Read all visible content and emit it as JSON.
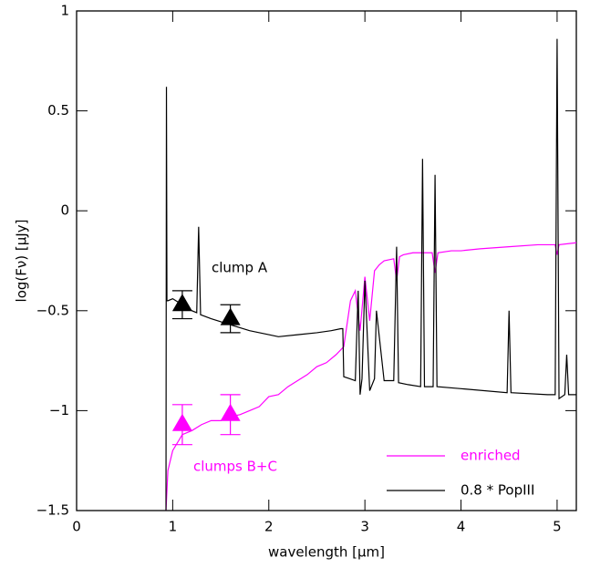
{
  "chart_data": {
    "type": "line",
    "x_label": "wavelength [μm]",
    "y_label": "log(Fν) [μJy]",
    "xlim": [
      0,
      5.2
    ],
    "ylim": [
      -1.5,
      1
    ],
    "xticks": [
      0,
      1,
      2,
      3,
      4,
      5
    ],
    "yticks": [
      {
        "value": -1.5,
        "label": "−1.5"
      },
      {
        "value": -1,
        "label": "−1"
      },
      {
        "value": -0.5,
        "label": "−0.5"
      },
      0,
      0.5,
      1
    ],
    "legend": "lower right",
    "series": [
      {
        "name": "enriched",
        "color": "#ff00ff",
        "x": [
          0.93,
          0.95,
          1.0,
          1.1,
          1.2,
          1.3,
          1.4,
          1.5,
          1.6,
          1.7,
          1.8,
          1.9,
          2.0,
          2.1,
          2.2,
          2.3,
          2.4,
          2.5,
          2.6,
          2.7,
          2.78,
          2.85,
          2.9,
          2.95,
          3.0,
          3.05,
          3.1,
          3.15,
          3.2,
          3.3,
          3.33,
          3.36,
          3.4,
          3.5,
          3.6,
          3.7,
          3.73,
          3.76,
          3.9,
          4.0,
          4.2,
          4.5,
          4.8,
          4.98,
          5.0,
          5.02,
          5.2
        ],
        "values": [
          -1.5,
          -1.3,
          -1.2,
          -1.12,
          -1.1,
          -1.07,
          -1.05,
          -1.05,
          -1.03,
          -1.02,
          -1.0,
          -0.98,
          -0.93,
          -0.92,
          -0.88,
          -0.85,
          -0.82,
          -0.78,
          -0.76,
          -0.72,
          -0.68,
          -0.45,
          -0.4,
          -0.6,
          -0.33,
          -0.55,
          -0.3,
          -0.27,
          -0.25,
          -0.24,
          -0.35,
          -0.23,
          -0.22,
          -0.21,
          -0.21,
          -0.21,
          -0.31,
          -0.21,
          -0.2,
          -0.2,
          -0.19,
          -0.18,
          -0.17,
          -0.17,
          -0.22,
          -0.17,
          -0.16
        ]
      },
      {
        "name": "0.8 * PopIII",
        "color": "#000000",
        "x": [
          0.93,
          0.935,
          0.94,
          0.95,
          1.0,
          1.1,
          1.2,
          1.25,
          1.27,
          1.29,
          1.4,
          1.6,
          1.8,
          2.0,
          2.1,
          2.3,
          2.5,
          2.65,
          2.75,
          2.77,
          2.78,
          2.9,
          2.93,
          2.95,
          2.97,
          3.0,
          3.05,
          3.1,
          3.12,
          3.2,
          3.3,
          3.33,
          3.35,
          3.45,
          3.58,
          3.6,
          3.62,
          3.71,
          3.73,
          3.75,
          4.0,
          4.48,
          4.5,
          4.52,
          4.9,
          4.98,
          5.0,
          5.02,
          5.08,
          5.1,
          5.12,
          5.2
        ],
        "values": [
          -1.5,
          0.62,
          -0.45,
          -0.45,
          -0.44,
          -0.47,
          -0.5,
          -0.51,
          -0.08,
          -0.52,
          -0.54,
          -0.57,
          -0.6,
          -0.62,
          -0.63,
          -0.62,
          -0.61,
          -0.6,
          -0.59,
          -0.59,
          -0.83,
          -0.85,
          -0.4,
          -0.92,
          -0.84,
          -0.35,
          -0.9,
          -0.84,
          -0.5,
          -0.85,
          -0.85,
          -0.18,
          -0.86,
          -0.87,
          -0.88,
          0.26,
          -0.88,
          -0.88,
          0.18,
          -0.88,
          -0.89,
          -0.91,
          -0.5,
          -0.91,
          -0.92,
          -0.92,
          0.86,
          -0.94,
          -0.92,
          -0.72,
          -0.92,
          -0.92
        ]
      }
    ],
    "points": [
      {
        "name": "clump A",
        "color": "#000000",
        "x": [
          1.1,
          1.6
        ],
        "values": [
          -0.47,
          -0.54
        ],
        "errors": [
          0.07,
          0.07
        ]
      },
      {
        "name": "clumps B+C",
        "color": "#ff00ff",
        "x": [
          1.1,
          1.6
        ],
        "values": [
          -1.07,
          -1.02
        ],
        "errors": [
          0.1,
          0.1
        ]
      }
    ]
  }
}
